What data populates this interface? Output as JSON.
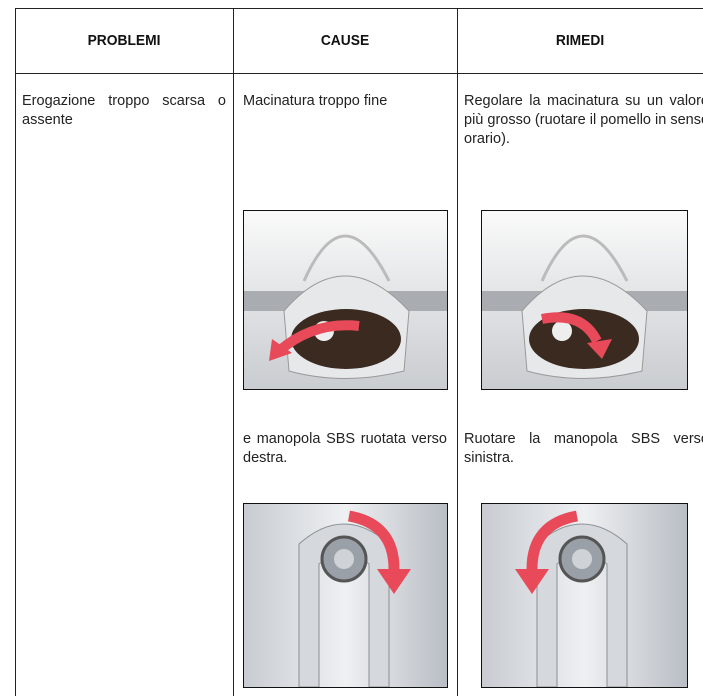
{
  "table": {
    "headers": [
      "PROBLEMI",
      "CAUSE",
      "RIMEDI"
    ],
    "row": {
      "problem": "Erogazione troppo scarsa o assente",
      "causes": [
        "Macinatura troppo fine",
        "e manopola SBS ruotata verso destra."
      ],
      "remedies": [
        "Regolare la macinatura su un valore più grosso (ruotare il pomello in senso orario).",
        "Ruotare la manopola SBS verso sinistra."
      ]
    }
  }
}
